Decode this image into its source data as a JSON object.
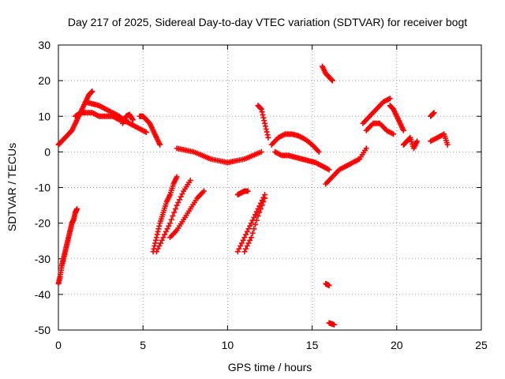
{
  "chart_data": {
    "type": "scatter",
    "title": "Day 217 of 2025, Sidereal Day-to-day VTEC variation (SDTVAR) for receiver bogt",
    "xlabel": "GPS time / hours",
    "ylabel": "SDTVAR / TECUs",
    "xlim": [
      0,
      25
    ],
    "ylim": [
      -50,
      30
    ],
    "xticks": [
      0,
      5,
      10,
      15,
      20,
      25
    ],
    "yticks": [
      -50,
      -40,
      -30,
      -20,
      -10,
      0,
      10,
      20,
      30
    ],
    "xtick_labels": [
      "0",
      "5",
      "10",
      "15",
      "20",
      "25"
    ],
    "ytick_labels": [
      "-50",
      "-40",
      "-30",
      "-20",
      "-10",
      "0",
      "10",
      "20",
      "30"
    ],
    "grid": true,
    "marker": "plus",
    "color": "#ff0000",
    "series": [
      {
        "name": "arc-early-rise",
        "x": [
          0.0,
          0.2,
          0.4,
          0.6,
          0.8,
          1.0,
          1.2,
          1.4,
          1.6,
          1.8,
          2.0
        ],
        "y": [
          2,
          3,
          4,
          5,
          6,
          8,
          10,
          12,
          14,
          16,
          17
        ]
      },
      {
        "name": "arc-early-plateau",
        "x": [
          1.0,
          1.3,
          1.6,
          2.0,
          2.4,
          2.8,
          3.2,
          3.6,
          4.0
        ],
        "y": [
          10,
          11,
          11,
          11,
          10,
          10,
          10,
          9,
          9
        ]
      },
      {
        "name": "arc-early-fall",
        "x": [
          1.6,
          2.0,
          2.4,
          2.8,
          3.2,
          3.6,
          4.0,
          4.4,
          4.8,
          5.2
        ],
        "y": [
          14,
          13.5,
          13,
          12,
          11,
          10,
          8.5,
          7.5,
          6.5,
          5.5
        ]
      },
      {
        "name": "arc-hump-4",
        "x": [
          3.8,
          4.0,
          4.2,
          4.4
        ],
        "y": [
          8,
          10,
          10.5,
          9
        ]
      },
      {
        "name": "arc-5-6",
        "x": [
          4.8,
          5.0,
          5.2,
          5.4,
          5.6,
          5.8,
          6.0
        ],
        "y": [
          10,
          10,
          9,
          8,
          6,
          4,
          2
        ]
      },
      {
        "name": "arc-low-start",
        "x": [
          0.0,
          0.1,
          0.2,
          0.3,
          0.4,
          0.5,
          0.6,
          0.7,
          0.8,
          0.9,
          1.0,
          1.1
        ],
        "y": [
          -37,
          -35,
          -32,
          -30,
          -28,
          -26,
          -24,
          -22,
          -20,
          -19,
          -17,
          -16
        ]
      },
      {
        "name": "arc-6-7-steep",
        "x": [
          5.6,
          5.8,
          6.0,
          6.2,
          6.4,
          6.6,
          6.8,
          7.0
        ],
        "y": [
          -28,
          -24,
          -20,
          -17,
          -14,
          -12,
          -9,
          -7
        ]
      },
      {
        "name": "arc-6-8",
        "x": [
          5.8,
          6.2,
          6.6,
          7.0,
          7.4,
          7.8
        ],
        "y": [
          -28,
          -24,
          -20,
          -15,
          -11,
          -8
        ]
      },
      {
        "name": "arc-7-9",
        "x": [
          6.6,
          7.0,
          7.4,
          7.8,
          8.2,
          8.6
        ],
        "y": [
          -24,
          -22,
          -19,
          -16,
          -13,
          -11
        ]
      },
      {
        "name": "arc-7-12-flat",
        "x": [
          7.0,
          7.5,
          8.0,
          8.5,
          9.0,
          9.5,
          10.0,
          10.5,
          11.0,
          11.5,
          12.0
        ],
        "y": [
          1,
          0.5,
          0,
          -1,
          -2,
          -2.5,
          -3,
          -2.5,
          -2,
          -1,
          0
        ]
      },
      {
        "name": "arc-11-12",
        "x": [
          10.6,
          11.0,
          11.4,
          11.8,
          12.2
        ],
        "y": [
          -28,
          -24,
          -20,
          -16,
          -12
        ]
      },
      {
        "name": "arc-11-12-b",
        "x": [
          11.0,
          11.4,
          11.8,
          12.2
        ],
        "y": [
          -28,
          -24,
          -18,
          -13
        ]
      },
      {
        "name": "arc-10-11-small",
        "x": [
          10.6,
          10.8,
          11.0,
          11.2
        ],
        "y": [
          -12,
          -11.5,
          -11,
          -11
        ]
      },
      {
        "name": "arc-12-14",
        "x": [
          11.8,
          12.0,
          12.2,
          12.4
        ],
        "y": [
          13,
          12,
          8,
          4
        ]
      },
      {
        "name": "arc-13-16-hump",
        "x": [
          12.6,
          13.0,
          13.4,
          13.8,
          14.2,
          14.6,
          15.0,
          15.4
        ],
        "y": [
          2,
          4,
          5,
          5,
          4.5,
          3.5,
          2,
          0
        ]
      },
      {
        "name": "arc-13-16-low",
        "x": [
          12.8,
          13.2,
          13.6,
          14.0,
          14.4,
          14.8,
          15.2,
          15.6,
          16.0
        ],
        "y": [
          0,
          -1,
          -1,
          -1.5,
          -2,
          -2.5,
          -3,
          -4,
          -5
        ]
      },
      {
        "name": "arc-16-spike",
        "x": [
          15.6,
          15.8,
          16.0,
          16.2
        ],
        "y": [
          24,
          22,
          21,
          20
        ]
      },
      {
        "name": "arc-16-low",
        "x": [
          15.8,
          16.0
        ],
        "y": [
          -37,
          -37.5
        ]
      },
      {
        "name": "arc-16-bottom",
        "x": [
          16.0,
          16.3
        ],
        "y": [
          -48,
          -48.5
        ]
      },
      {
        "name": "arc-16-18",
        "x": [
          15.8,
          16.2,
          16.6,
          17.0,
          17.4,
          17.8,
          18.2
        ],
        "y": [
          -9,
          -7,
          -5,
          -4,
          -3,
          -2,
          1
        ]
      },
      {
        "name": "arc-18-20-rise",
        "x": [
          18.0,
          18.4,
          18.8,
          19.2,
          19.6
        ],
        "y": [
          8,
          10,
          12,
          14,
          15
        ]
      },
      {
        "name": "arc-18-20-lower",
        "x": [
          18.2,
          18.6,
          19.0,
          19.4,
          19.8
        ],
        "y": [
          6,
          8,
          8,
          6,
          5
        ]
      },
      {
        "name": "arc-20-21",
        "x": [
          19.6,
          19.8,
          20.0,
          20.2,
          20.4
        ],
        "y": [
          13,
          12,
          10,
          8,
          6
        ]
      },
      {
        "name": "arc-20-21-cluster",
        "x": [
          20.4,
          20.6,
          20.8,
          21.0,
          21.2
        ],
        "y": [
          2,
          3,
          4,
          1,
          3
        ]
      },
      {
        "name": "arc-22",
        "x": [
          22.0,
          22.2
        ],
        "y": [
          10,
          11
        ]
      },
      {
        "name": "arc-22-23",
        "x": [
          22.0,
          22.4,
          22.8,
          23.0
        ],
        "y": [
          3,
          4,
          5,
          2
        ]
      }
    ]
  }
}
